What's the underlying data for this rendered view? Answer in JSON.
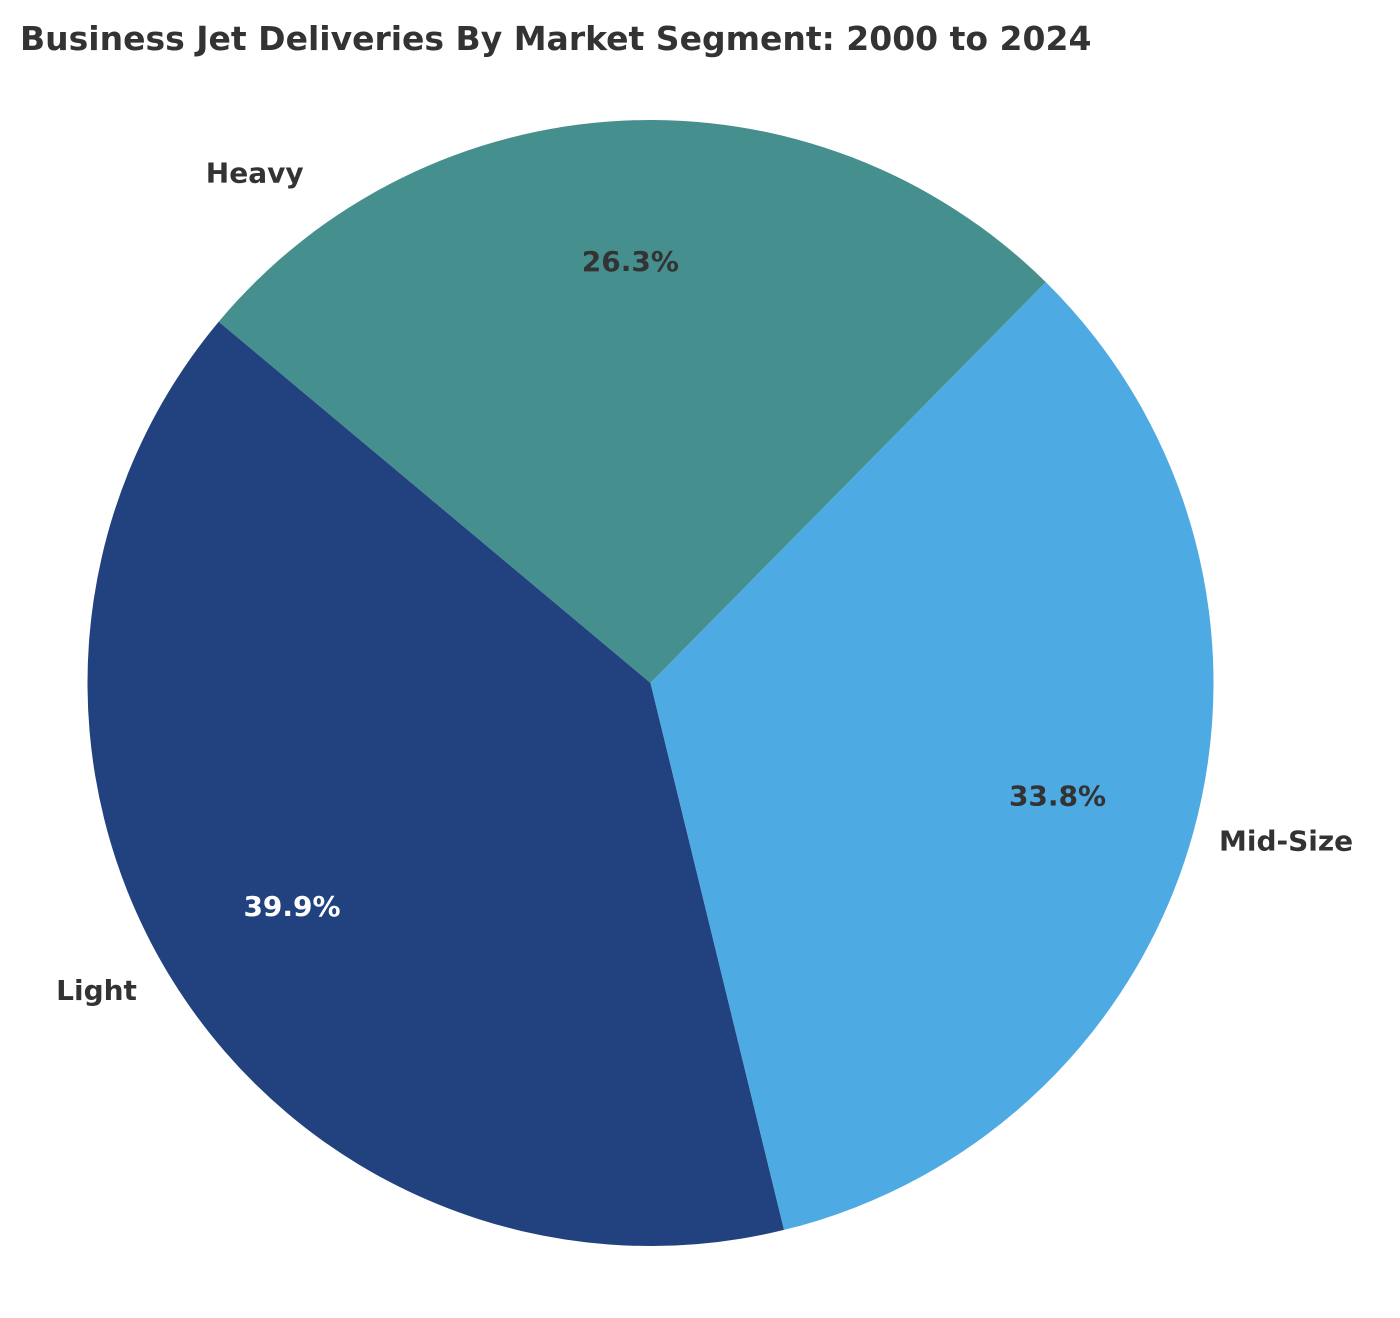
{
  "chart_data": {
    "type": "pie",
    "title": "Business Jet Deliveries By Market Segment: 2000 to 2024",
    "categories": [
      "Heavy",
      "Light",
      "Mid-Size"
    ],
    "values": [
      26.3,
      39.9,
      33.8
    ],
    "labels_pct": [
      "26.3%",
      "39.9%",
      "33.8%"
    ],
    "colors": [
      "#468f8f",
      "#21427f",
      "#4eaae2"
    ],
    "pct_text_colors": [
      "#333333",
      "#ffffff",
      "#333333"
    ],
    "start_angle": 45.4,
    "counterclockwise": true,
    "legend": "none"
  }
}
